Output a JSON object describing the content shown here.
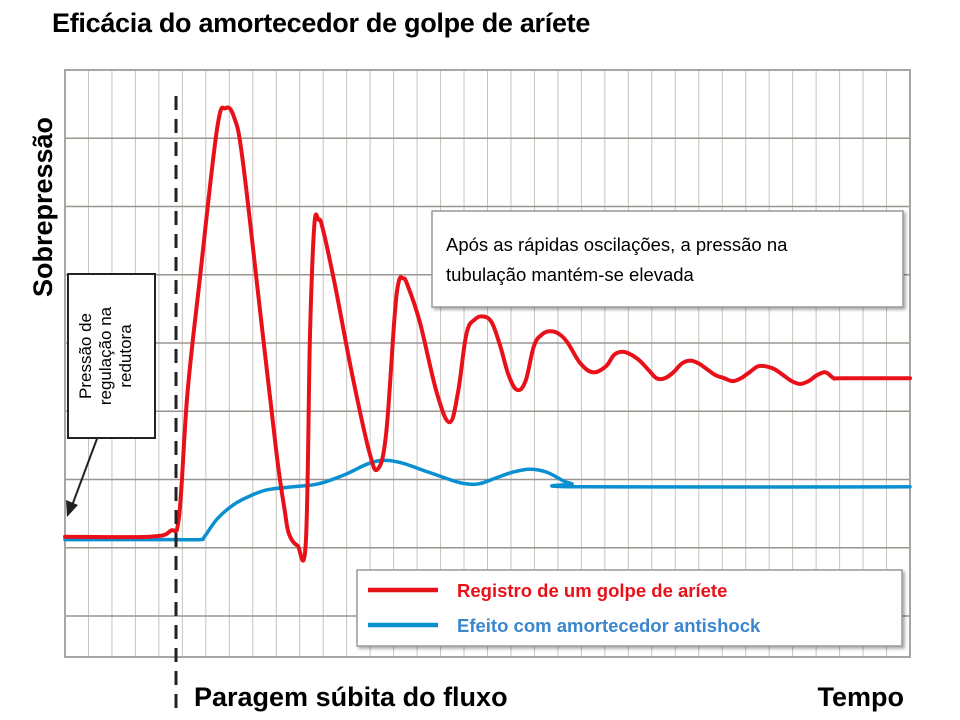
{
  "chart_data": {
    "type": "line",
    "title": "Eficácia do amortecedor de golpe de aríete",
    "ylabel": "Sobrepressão",
    "xlabel": "Tempo",
    "event_label": "Paragem súbita do fluxo",
    "annotation_box": "Após as rápidas oscilações, a pressão na tubulação mantém-se elevada",
    "regulation_label": [
      "Pressão de",
      "regulação na",
      "redutora"
    ],
    "grid": true,
    "legend_position": "bottom-right",
    "x_range": [
      0,
      100
    ],
    "y_range": [
      0,
      100
    ],
    "event_x": 13,
    "series": [
      {
        "name": "Registro de um golpe de aríete",
        "color": "#e8111a",
        "points": [
          [
            0,
            20.5
          ],
          [
            10,
            20.5
          ],
          [
            12.5,
            21.5
          ],
          [
            13.5,
            24
          ],
          [
            14.5,
            45
          ],
          [
            16,
            65
          ],
          [
            18,
            90
          ],
          [
            19,
            93.5
          ],
          [
            20,
            92
          ],
          [
            21,
            85
          ],
          [
            23,
            60
          ],
          [
            25,
            35
          ],
          [
            26,
            25
          ],
          [
            26.5,
            21
          ],
          [
            27.5,
            19
          ],
          [
            28.5,
            19.5
          ],
          [
            29,
            55
          ],
          [
            29.5,
            73.5
          ],
          [
            30,
            74.5
          ],
          [
            30.5,
            73
          ],
          [
            32,
            63
          ],
          [
            34,
            48
          ],
          [
            36,
            35
          ],
          [
            37,
            32
          ],
          [
            38,
            38
          ],
          [
            39,
            58
          ],
          [
            39.5,
            64
          ],
          [
            40,
            64.5
          ],
          [
            40.5,
            63.5
          ],
          [
            42,
            57
          ],
          [
            44,
            45
          ],
          [
            45.5,
            40
          ],
          [
            46.5,
            45
          ],
          [
            47.5,
            55
          ],
          [
            48.5,
            57.5
          ],
          [
            49.5,
            58
          ],
          [
            50.5,
            57
          ],
          [
            51.5,
            53
          ],
          [
            52.5,
            48
          ],
          [
            53.5,
            45.5
          ],
          [
            54.5,
            47
          ],
          [
            55.5,
            53
          ],
          [
            56.5,
            55
          ],
          [
            57.5,
            55.5
          ],
          [
            58.5,
            55
          ],
          [
            59.5,
            53.5
          ],
          [
            61,
            50
          ],
          [
            62.5,
            48.5
          ],
          [
            64,
            49.5
          ],
          [
            65,
            51.5
          ],
          [
            66,
            52
          ],
          [
            67,
            51.5
          ],
          [
            68,
            50.5
          ],
          [
            69,
            49
          ],
          [
            70,
            47.5
          ],
          [
            71,
            47.5
          ],
          [
            72,
            48.5
          ],
          [
            73,
            50
          ],
          [
            74,
            50.5
          ],
          [
            75,
            50
          ],
          [
            76,
            49
          ],
          [
            77,
            48
          ],
          [
            78,
            47.5
          ],
          [
            79,
            47
          ],
          [
            80,
            47.5
          ],
          [
            81,
            48.5
          ],
          [
            82,
            49.5
          ],
          [
            83,
            49.5
          ],
          [
            84,
            49
          ],
          [
            85,
            48
          ],
          [
            86,
            47
          ],
          [
            87,
            46.5
          ],
          [
            88,
            47
          ],
          [
            89,
            48
          ],
          [
            90,
            48.5
          ],
          [
            91,
            47.5
          ],
          [
            92,
            47.5
          ],
          [
            100,
            47.5
          ]
        ]
      },
      {
        "name": "Efeito com amortecedor antishock",
        "color": "#0a8fd0",
        "points": [
          [
            0,
            20
          ],
          [
            13,
            20
          ],
          [
            16,
            20
          ],
          [
            16.5,
            20.5
          ],
          [
            18,
            23.5
          ],
          [
            20,
            26
          ],
          [
            22,
            27.5
          ],
          [
            24,
            28.5
          ],
          [
            27,
            29
          ],
          [
            30,
            29.5
          ],
          [
            33,
            31
          ],
          [
            36,
            33
          ],
          [
            38,
            33.5
          ],
          [
            40,
            33
          ],
          [
            42,
            32
          ],
          [
            44,
            31
          ],
          [
            46,
            30
          ],
          [
            47.5,
            29.5
          ],
          [
            49,
            29.5
          ],
          [
            51,
            30.5
          ],
          [
            53,
            31.5
          ],
          [
            55,
            32
          ],
          [
            57,
            31.5
          ],
          [
            59,
            30
          ],
          [
            60,
            29.5
          ],
          [
            61,
            29
          ],
          [
            100,
            29
          ]
        ]
      }
    ]
  }
}
